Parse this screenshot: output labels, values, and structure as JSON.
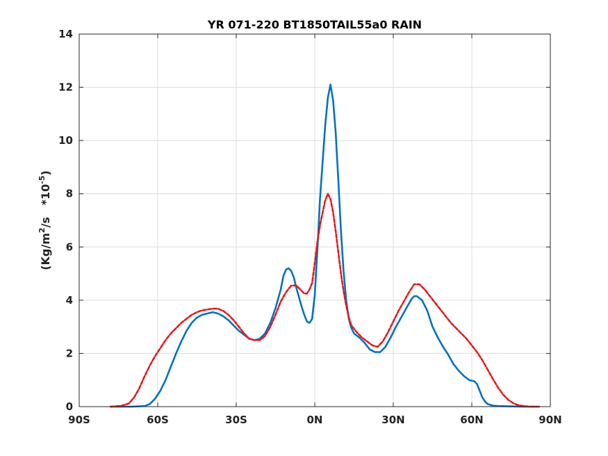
{
  "chart_data": {
    "type": "line",
    "title": "YR 071-220 BT1850TAIL55a0 RAIN",
    "xlabel": "",
    "ylabel": {
      "main": "(Kg/m",
      "sup1": "2",
      "mid": "/s   *10",
      "sup2": "-5",
      "end": ")"
    },
    "xlim": [
      -90,
      90
    ],
    "ylim": [
      0,
      14
    ],
    "x_ticks": [
      -90,
      -60,
      -30,
      0,
      30,
      60,
      90
    ],
    "x_tick_labels": [
      "90S",
      "60S",
      "30S",
      "0N",
      "30N",
      "60N",
      "90N"
    ],
    "y_ticks": [
      0,
      2,
      4,
      6,
      8,
      10,
      12,
      14
    ],
    "y_tick_labels": [
      "0",
      "2",
      "4",
      "6",
      "8",
      "10",
      "12",
      "14"
    ],
    "grid": true,
    "series": [
      {
        "color": "#0072bd",
        "style": "solid",
        "points": [
          [
            -78,
            0
          ],
          [
            -70,
            0
          ],
          [
            -65,
            0.02
          ],
          [
            -63,
            0.1
          ],
          [
            -61,
            0.3
          ],
          [
            -59,
            0.6
          ],
          [
            -57,
            1.0
          ],
          [
            -55,
            1.5
          ],
          [
            -53,
            2.0
          ],
          [
            -51,
            2.45
          ],
          [
            -49,
            2.85
          ],
          [
            -47,
            3.15
          ],
          [
            -45,
            3.35
          ],
          [
            -43,
            3.45
          ],
          [
            -41,
            3.5
          ],
          [
            -39,
            3.55
          ],
          [
            -37,
            3.5
          ],
          [
            -35,
            3.4
          ],
          [
            -33,
            3.25
          ],
          [
            -31,
            3.05
          ],
          [
            -29,
            2.85
          ],
          [
            -27,
            2.7
          ],
          [
            -25,
            2.55
          ],
          [
            -23,
            2.5
          ],
          [
            -21,
            2.55
          ],
          [
            -19,
            2.75
          ],
          [
            -17,
            3.15
          ],
          [
            -15,
            3.7
          ],
          [
            -13,
            4.4
          ],
          [
            -12,
            4.9
          ],
          [
            -11,
            5.15
          ],
          [
            -10,
            5.2
          ],
          [
            -9,
            5.1
          ],
          [
            -8,
            4.85
          ],
          [
            -7,
            4.45
          ],
          [
            -6,
            4.1
          ],
          [
            -5,
            3.75
          ],
          [
            -4,
            3.45
          ],
          [
            -3,
            3.2
          ],
          [
            -2,
            3.15
          ],
          [
            -1,
            3.3
          ],
          [
            0,
            4.2
          ],
          [
            1,
            5.9
          ],
          [
            2,
            7.8
          ],
          [
            3,
            9.2
          ],
          [
            4,
            10.6
          ],
          [
            5,
            11.6
          ],
          [
            6,
            12.1
          ],
          [
            7,
            11.5
          ],
          [
            8,
            10.3
          ],
          [
            9,
            8.5
          ],
          [
            10,
            6.6
          ],
          [
            11,
            5.1
          ],
          [
            12,
            4.0
          ],
          [
            13,
            3.3
          ],
          [
            14,
            2.95
          ],
          [
            15,
            2.75
          ],
          [
            17,
            2.6
          ],
          [
            19,
            2.4
          ],
          [
            21,
            2.15
          ],
          [
            23,
            2.05
          ],
          [
            25,
            2.05
          ],
          [
            27,
            2.25
          ],
          [
            29,
            2.6
          ],
          [
            31,
            3.0
          ],
          [
            33,
            3.35
          ],
          [
            35,
            3.7
          ],
          [
            37,
            4.05
          ],
          [
            38,
            4.15
          ],
          [
            39,
            4.15
          ],
          [
            41,
            4.0
          ],
          [
            43,
            3.6
          ],
          [
            45,
            3.0
          ],
          [
            47,
            2.6
          ],
          [
            49,
            2.25
          ],
          [
            51,
            1.95
          ],
          [
            53,
            1.6
          ],
          [
            55,
            1.35
          ],
          [
            57,
            1.15
          ],
          [
            59,
            1.0
          ],
          [
            61,
            0.95
          ],
          [
            62,
            0.85
          ],
          [
            63,
            0.6
          ],
          [
            64,
            0.35
          ],
          [
            65,
            0.2
          ],
          [
            66,
            0.1
          ],
          [
            68,
            0.04
          ],
          [
            70,
            0.02
          ],
          [
            80,
            0
          ],
          [
            85,
            0
          ]
        ]
      },
      {
        "color": "#e31a1c",
        "style": "dashed",
        "points": [
          [
            -78,
            0
          ],
          [
            -74,
            0.03
          ],
          [
            -71,
            0.12
          ],
          [
            -69,
            0.35
          ],
          [
            -67,
            0.7
          ],
          [
            -65,
            1.15
          ],
          [
            -63,
            1.55
          ],
          [
            -61,
            1.9
          ],
          [
            -59,
            2.2
          ],
          [
            -57,
            2.5
          ],
          [
            -55,
            2.75
          ],
          [
            -53,
            2.95
          ],
          [
            -51,
            3.15
          ],
          [
            -49,
            3.3
          ],
          [
            -47,
            3.45
          ],
          [
            -45,
            3.55
          ],
          [
            -43,
            3.62
          ],
          [
            -41,
            3.65
          ],
          [
            -39,
            3.68
          ],
          [
            -37,
            3.68
          ],
          [
            -35,
            3.6
          ],
          [
            -33,
            3.45
          ],
          [
            -31,
            3.25
          ],
          [
            -29,
            3.0
          ],
          [
            -27,
            2.75
          ],
          [
            -25,
            2.55
          ],
          [
            -23,
            2.5
          ],
          [
            -21,
            2.5
          ],
          [
            -19,
            2.65
          ],
          [
            -17,
            3.0
          ],
          [
            -15,
            3.45
          ],
          [
            -13,
            3.95
          ],
          [
            -11,
            4.3
          ],
          [
            -9,
            4.55
          ],
          [
            -7,
            4.55
          ],
          [
            -5,
            4.35
          ],
          [
            -4,
            4.25
          ],
          [
            -3,
            4.25
          ],
          [
            -2,
            4.4
          ],
          [
            -1,
            4.65
          ],
          [
            0,
            5.4
          ],
          [
            1,
            6.2
          ],
          [
            2,
            6.8
          ],
          [
            3,
            7.3
          ],
          [
            4,
            7.75
          ],
          [
            5,
            8.0
          ],
          [
            6,
            7.8
          ],
          [
            7,
            7.3
          ],
          [
            8,
            6.6
          ],
          [
            9,
            5.8
          ],
          [
            10,
            5.0
          ],
          [
            11,
            4.35
          ],
          [
            12,
            3.8
          ],
          [
            13,
            3.35
          ],
          [
            14,
            3.05
          ],
          [
            16,
            2.8
          ],
          [
            18,
            2.6
          ],
          [
            20,
            2.45
          ],
          [
            22,
            2.3
          ],
          [
            24,
            2.25
          ],
          [
            26,
            2.45
          ],
          [
            28,
            2.8
          ],
          [
            30,
            3.2
          ],
          [
            32,
            3.6
          ],
          [
            34,
            3.95
          ],
          [
            36,
            4.3
          ],
          [
            38,
            4.6
          ],
          [
            40,
            4.6
          ],
          [
            42,
            4.4
          ],
          [
            44,
            4.15
          ],
          [
            46,
            3.9
          ],
          [
            48,
            3.65
          ],
          [
            50,
            3.4
          ],
          [
            52,
            3.15
          ],
          [
            54,
            2.95
          ],
          [
            56,
            2.75
          ],
          [
            58,
            2.55
          ],
          [
            60,
            2.3
          ],
          [
            62,
            2.05
          ],
          [
            64,
            1.75
          ],
          [
            66,
            1.4
          ],
          [
            68,
            1.05
          ],
          [
            70,
            0.72
          ],
          [
            72,
            0.45
          ],
          [
            74,
            0.25
          ],
          [
            76,
            0.12
          ],
          [
            78,
            0.05
          ],
          [
            80,
            0.02
          ],
          [
            82,
            0
          ],
          [
            86,
            0
          ]
        ]
      }
    ]
  }
}
